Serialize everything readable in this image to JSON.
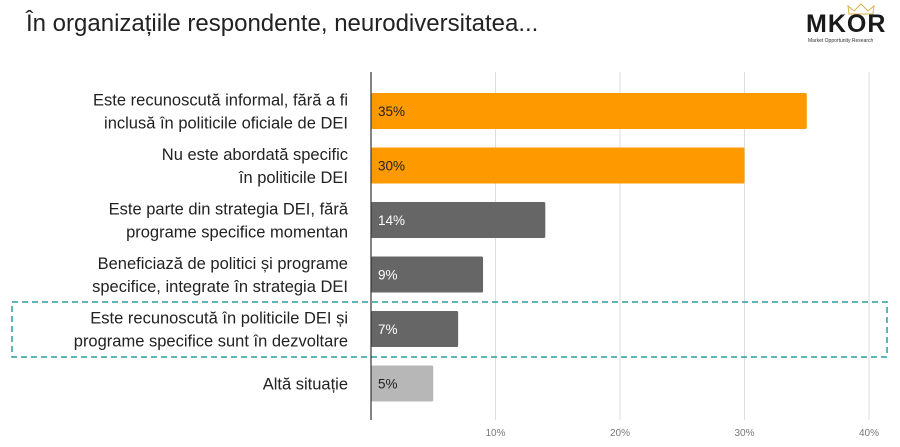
{
  "title": "În organizațiile respondente, neurodiversitatea...",
  "logo": {
    "name": "MKOR",
    "tagline": "Market Opportunity Research"
  },
  "chart_data": {
    "type": "bar",
    "orientation": "horizontal",
    "title": "În organizațiile respondente, neurodiversitatea...",
    "categories": [
      [
        "Este recunoscută informal, fără a fi",
        "inclusă în politicile oficiale de DEI"
      ],
      [
        "Nu este abordată specific",
        "în politicile DEI"
      ],
      [
        "Este parte din strategia DEI, fără",
        "programe specifice momentan"
      ],
      [
        "Beneficiază de politici și programe",
        "specifice, integrate în strategia DEI"
      ],
      [
        "Este recunoscută în politicile DEI și",
        "programe specifice sunt în dezvoltare"
      ],
      [
        "Altă situație"
      ]
    ],
    "values": [
      35,
      30,
      14,
      9,
      7,
      5
    ],
    "value_labels": [
      "35%",
      "30%",
      "14%",
      "9%",
      "7%",
      "5%"
    ],
    "colors": [
      "#FF9900",
      "#FF9900",
      "#666666",
      "#666666",
      "#666666",
      "#B7B7B7"
    ],
    "label_colors": [
      "#222222",
      "#222222",
      "#FFFFFF",
      "#FFFFFF",
      "#FFFFFF",
      "#222222"
    ],
    "xlim": [
      0,
      40
    ],
    "xticks": [
      10,
      20,
      30,
      40
    ],
    "xtick_labels": [
      "10%",
      "20%",
      "30%",
      "40%"
    ],
    "grid": true,
    "highlighted_category_index": 4,
    "highlight_color": "#2A9D9F"
  }
}
